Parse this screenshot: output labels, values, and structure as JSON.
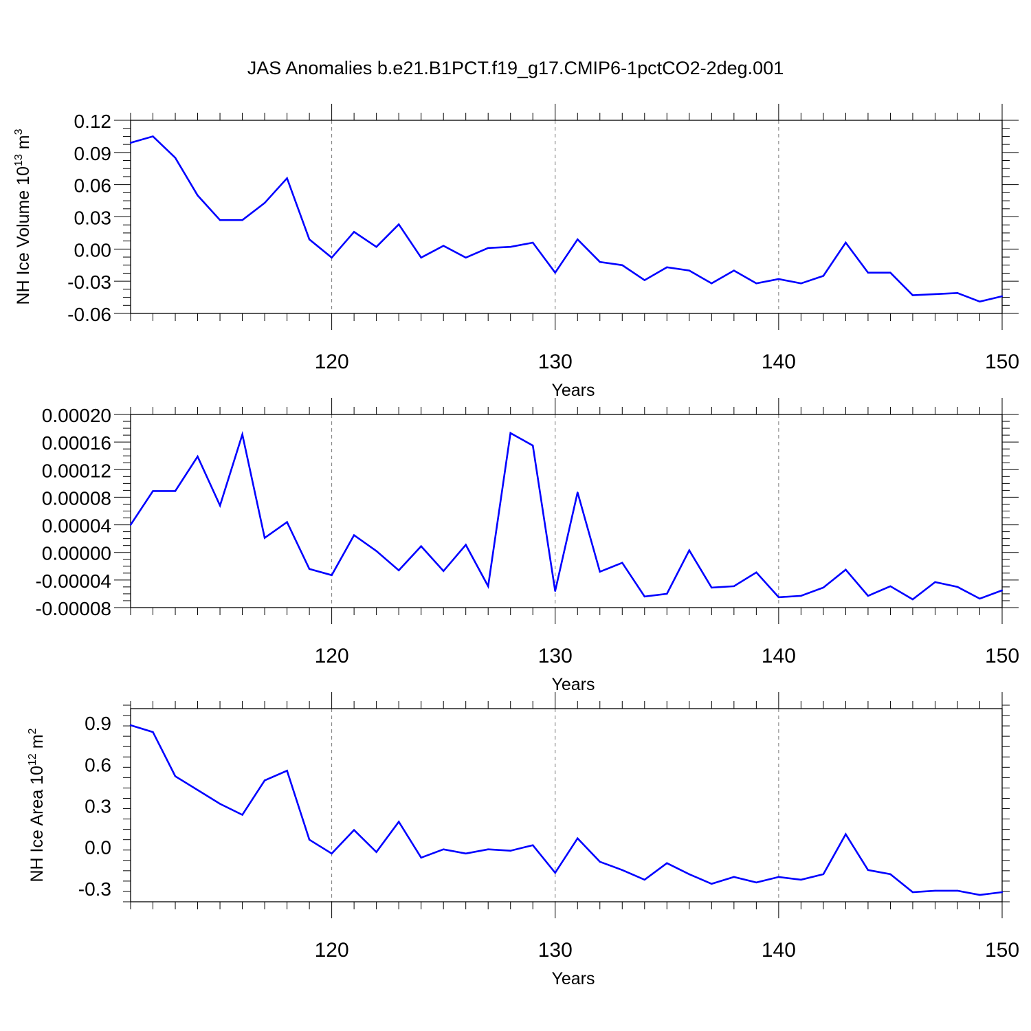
{
  "title": "JAS Anomalies b.e21.B1PCT.f19_g17.CMIP6-1pctCO2-2deg.001",
  "chart_data": [
    {
      "type": "line",
      "xlabel": "Years",
      "ylabel": "NH Ice Volume 10",
      "ylabel_sup1": "13",
      "ylabel_mid": " m",
      "ylabel_sup2": "3",
      "xlim": [
        111,
        150
      ],
      "ylim": [
        -0.06,
        0.12
      ],
      "xticks": [
        120,
        130,
        140,
        150
      ],
      "xtick_labels": [
        "120",
        "130",
        "140",
        "150"
      ],
      "yticks": [
        0.12,
        0.09,
        0.06,
        0.03,
        0.0,
        -0.03,
        -0.06
      ],
      "ytick_labels": [
        "0.12",
        "0.09",
        "0.06",
        "0.03",
        "0.00",
        "-0.03",
        "-0.06"
      ],
      "grid": "dashed vertical at major x ticks",
      "line_color": "#0000ff",
      "x": [
        111,
        112,
        113,
        114,
        115,
        116,
        117,
        118,
        119,
        120,
        121,
        122,
        123,
        124,
        125,
        126,
        127,
        128,
        129,
        130,
        131,
        132,
        133,
        134,
        135,
        136,
        137,
        138,
        139,
        140,
        141,
        142,
        143,
        144,
        145,
        146,
        147,
        148,
        149,
        150
      ],
      "y": [
        0.099,
        0.105,
        0.085,
        0.05,
        0.027,
        0.027,
        0.043,
        0.066,
        0.009,
        -0.008,
        0.016,
        0.002,
        0.023,
        -0.008,
        0.003,
        -0.008,
        0.001,
        0.002,
        0.006,
        -0.022,
        0.009,
        -0.012,
        -0.015,
        -0.029,
        -0.017,
        -0.02,
        -0.032,
        -0.02,
        -0.032,
        -0.028,
        -0.032,
        -0.025,
        0.006,
        -0.022,
        -0.022,
        -0.043,
        -0.042,
        -0.041,
        -0.049,
        -0.044
      ]
    },
    {
      "type": "line",
      "xlabel": "Years",
      "ylabel": "",
      "xlim": [
        111,
        150
      ],
      "ylim": [
        -8e-05,
        0.0002
      ],
      "xticks": [
        120,
        130,
        140,
        150
      ],
      "xtick_labels": [
        "120",
        "130",
        "140",
        "150"
      ],
      "yticks": [
        0.0002,
        0.00016,
        0.00012,
        8e-05,
        4e-05,
        0.0,
        -4e-05,
        -8e-05
      ],
      "ytick_labels": [
        "0.00020",
        "0.00016",
        "0.00012",
        "0.00008",
        "0.00004",
        "0.00000",
        "-0.00004",
        "-0.00008"
      ],
      "grid": "dashed vertical at major x ticks",
      "line_color": "#0000ff",
      "x": [
        111,
        112,
        113,
        114,
        115,
        116,
        117,
        118,
        119,
        120,
        121,
        122,
        123,
        124,
        125,
        126,
        127,
        128,
        129,
        130,
        131,
        132,
        133,
        134,
        135,
        136,
        137,
        138,
        139,
        140,
        141,
        142,
        143,
        144,
        145,
        146,
        147,
        148,
        149,
        150
      ],
      "y": [
        4e-05,
        8.9e-05,
        8.9e-05,
        0.000139,
        6.8e-05,
        0.000171,
        2.1e-05,
        4.4e-05,
        -2.4e-05,
        -3.3e-05,
        2.5e-05,
        2e-06,
        -2.6e-05,
        9e-06,
        -2.7e-05,
        1.1e-05,
        -4.9e-05,
        0.000173,
        0.000155,
        -5.6e-05,
        8.7e-05,
        -2.8e-05,
        -1.5e-05,
        -6.4e-05,
        -6e-05,
        3e-06,
        -5.1e-05,
        -4.9e-05,
        -2.9e-05,
        -6.5e-05,
        -6.3e-05,
        -5.1e-05,
        -2.5e-05,
        -6.3e-05,
        -4.9e-05,
        -6.8e-05,
        -4.3e-05,
        -5e-05,
        -6.7e-05,
        -5.5e-05
      ]
    },
    {
      "type": "line",
      "xlabel": "Years",
      "ylabel": "NH Ice Area 10",
      "ylabel_sup1": "12",
      "ylabel_mid": " m",
      "ylabel_sup2": "2",
      "xlim": [
        111,
        150
      ],
      "ylim": [
        -0.4,
        1.0
      ],
      "xticks": [
        120,
        130,
        140,
        150
      ],
      "xtick_labels": [
        "120",
        "130",
        "140",
        "150"
      ],
      "yticks": [
        0.9,
        0.6,
        0.3,
        0.0,
        -0.3
      ],
      "ytick_labels": [
        "0.9",
        "0.6",
        "0.3",
        "0.0",
        "-0.3"
      ],
      "grid": "dashed vertical at major x ticks",
      "line_color": "#0000ff",
      "x": [
        111,
        112,
        113,
        114,
        115,
        116,
        117,
        118,
        119,
        120,
        121,
        122,
        123,
        124,
        125,
        126,
        127,
        128,
        129,
        130,
        131,
        132,
        133,
        134,
        135,
        136,
        137,
        138,
        139,
        140,
        141,
        142,
        143,
        144,
        145,
        146,
        147,
        148,
        149,
        150
      ],
      "y": [
        0.88,
        0.83,
        0.51,
        0.41,
        0.31,
        0.23,
        0.48,
        0.55,
        0.05,
        -0.05,
        0.12,
        -0.04,
        0.18,
        -0.08,
        -0.02,
        -0.05,
        -0.02,
        -0.03,
        0.01,
        -0.19,
        0.06,
        -0.11,
        -0.17,
        -0.24,
        -0.12,
        -0.2,
        -0.27,
        -0.22,
        -0.26,
        -0.22,
        -0.24,
        -0.2,
        0.09,
        -0.17,
        -0.2,
        -0.33,
        -0.32,
        -0.32,
        -0.35,
        -0.33
      ]
    }
  ]
}
